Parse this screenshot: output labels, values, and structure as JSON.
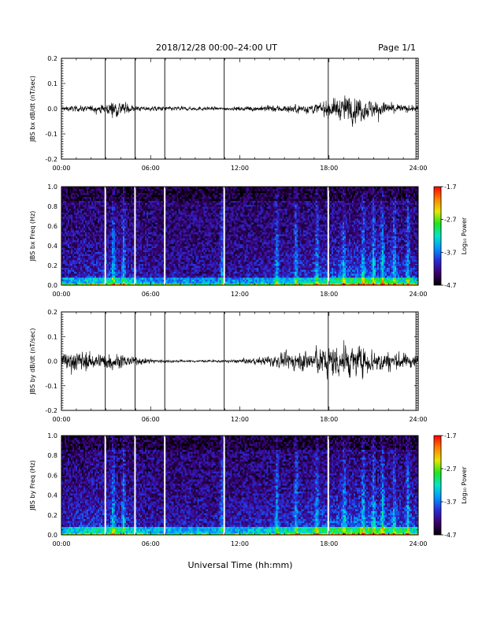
{
  "header": {
    "title": "2018/12/28   00:00–24:00 UT",
    "page": "Page 1/1"
  },
  "xlabel": "Universal Time (hh:mm)",
  "colors": {
    "colorbar_stops": [
      "#000000",
      "#3a006e",
      "#2a2ad8",
      "#0096ff",
      "#00e6c8",
      "#1ee61e",
      "#e6e600",
      "#ff8000",
      "#ff0000"
    ]
  },
  "chart_data": [
    {
      "type": "line",
      "ylabel": "JBS bx dB/dt (nT/sec)",
      "xlim": [
        0,
        24
      ],
      "ylim": [
        -0.2,
        0.2
      ],
      "xticks": [
        "00:00",
        "06:00",
        "12:00",
        "18:00",
        "24:00"
      ],
      "yticks": [
        "-0.2",
        "-0.1",
        "0.0",
        "0.1",
        "0.2"
      ],
      "gaps_hours": [
        2.95,
        4.95,
        6.95,
        10.95,
        17.95,
        23.85
      ],
      "envelope": [
        {
          "t": 0,
          "amp": 0.02
        },
        {
          "t": 2,
          "amp": 0.025
        },
        {
          "t": 3,
          "amp": 0.035
        },
        {
          "t": 3.5,
          "amp": 0.07
        },
        {
          "t": 4.2,
          "amp": 0.05
        },
        {
          "t": 5,
          "amp": 0.02
        },
        {
          "t": 7,
          "amp": 0.02
        },
        {
          "t": 9,
          "amp": 0.015
        },
        {
          "t": 11,
          "amp": 0.012
        },
        {
          "t": 13,
          "amp": 0.02
        },
        {
          "t": 15,
          "amp": 0.03
        },
        {
          "t": 17,
          "amp": 0.04
        },
        {
          "t": 18,
          "amp": 0.07
        },
        {
          "t": 19.5,
          "amp": 0.11
        },
        {
          "t": 21,
          "amp": 0.07
        },
        {
          "t": 22.5,
          "amp": 0.04
        },
        {
          "t": 24,
          "amp": 0.02
        }
      ]
    },
    {
      "type": "heatmap",
      "ylabel": "JBS bx Freq (Hz)",
      "xlim": [
        0,
        24
      ],
      "ylim": [
        0,
        1
      ],
      "xticks": [
        "00:00",
        "06:00",
        "12:00",
        "18:00",
        "24:00"
      ],
      "yticks": [
        "0.0",
        "0.2",
        "0.4",
        "0.6",
        "0.8",
        "1.0"
      ],
      "gaps_hours": [
        2.95,
        4.95,
        6.95,
        10.95,
        17.95
      ],
      "zlim": [
        -4.7,
        -1.7
      ],
      "colorbar_label": "Log₁₀ Power",
      "colorbar_ticks": [
        "-1.7",
        "-2.7",
        "-3.7",
        "-4.7"
      ],
      "activity": [
        {
          "t": 0,
          "a": 0.3
        },
        {
          "t": 3.5,
          "a": 0.5
        },
        {
          "t": 6,
          "a": 0.25
        },
        {
          "t": 11,
          "a": 0.2
        },
        {
          "t": 15,
          "a": 0.35
        },
        {
          "t": 18,
          "a": 0.55
        },
        {
          "t": 20,
          "a": 0.7
        },
        {
          "t": 22,
          "a": 0.6
        },
        {
          "t": 24,
          "a": 0.45
        }
      ]
    },
    {
      "type": "line",
      "ylabel": "JBS by dB/dt (nT/sec)",
      "xlim": [
        0,
        24
      ],
      "ylim": [
        -0.2,
        0.2
      ],
      "xticks": [
        "00:00",
        "06:00",
        "12:00",
        "18:00",
        "24:00"
      ],
      "yticks": [
        "-0.2",
        "-0.1",
        "0.0",
        "0.1",
        "0.2"
      ],
      "gaps_hours": [
        2.95,
        4.95,
        6.95,
        10.95,
        17.95,
        23.85
      ],
      "envelope": [
        {
          "t": 0,
          "amp": 0.07
        },
        {
          "t": 1,
          "amp": 0.09
        },
        {
          "t": 2,
          "amp": 0.06
        },
        {
          "t": 3.5,
          "amp": 0.07
        },
        {
          "t": 5,
          "amp": 0.03
        },
        {
          "t": 7,
          "amp": 0.012
        },
        {
          "t": 9,
          "amp": 0.01
        },
        {
          "t": 11,
          "amp": 0.01
        },
        {
          "t": 13,
          "amp": 0.025
        },
        {
          "t": 15,
          "amp": 0.06
        },
        {
          "t": 17,
          "amp": 0.1
        },
        {
          "t": 18.5,
          "amp": 0.14
        },
        {
          "t": 20,
          "amp": 0.12
        },
        {
          "t": 22,
          "amp": 0.08
        },
        {
          "t": 24,
          "amp": 0.05
        }
      ]
    },
    {
      "type": "heatmap",
      "ylabel": "JBS by Freq (Hz)",
      "xlim": [
        0,
        24
      ],
      "ylim": [
        0,
        1
      ],
      "xticks": [
        "00:00",
        "06:00",
        "12:00",
        "18:00",
        "24:00"
      ],
      "yticks": [
        "0.0",
        "0.2",
        "0.4",
        "0.6",
        "0.8",
        "1.0"
      ],
      "gaps_hours": [
        2.95,
        4.95,
        6.95,
        10.95,
        17.95
      ],
      "zlim": [
        -4.7,
        -1.7
      ],
      "colorbar_label": "Log₁₀ Power",
      "colorbar_ticks": [
        "-1.7",
        "-2.7",
        "-3.7",
        "-4.7"
      ],
      "activity": [
        {
          "t": 0,
          "a": 0.4
        },
        {
          "t": 3.5,
          "a": 0.55
        },
        {
          "t": 6,
          "a": 0.3
        },
        {
          "t": 11,
          "a": 0.3
        },
        {
          "t": 15,
          "a": 0.45
        },
        {
          "t": 18,
          "a": 0.65
        },
        {
          "t": 20,
          "a": 0.75
        },
        {
          "t": 22,
          "a": 0.65
        },
        {
          "t": 24,
          "a": 0.55
        }
      ]
    }
  ]
}
